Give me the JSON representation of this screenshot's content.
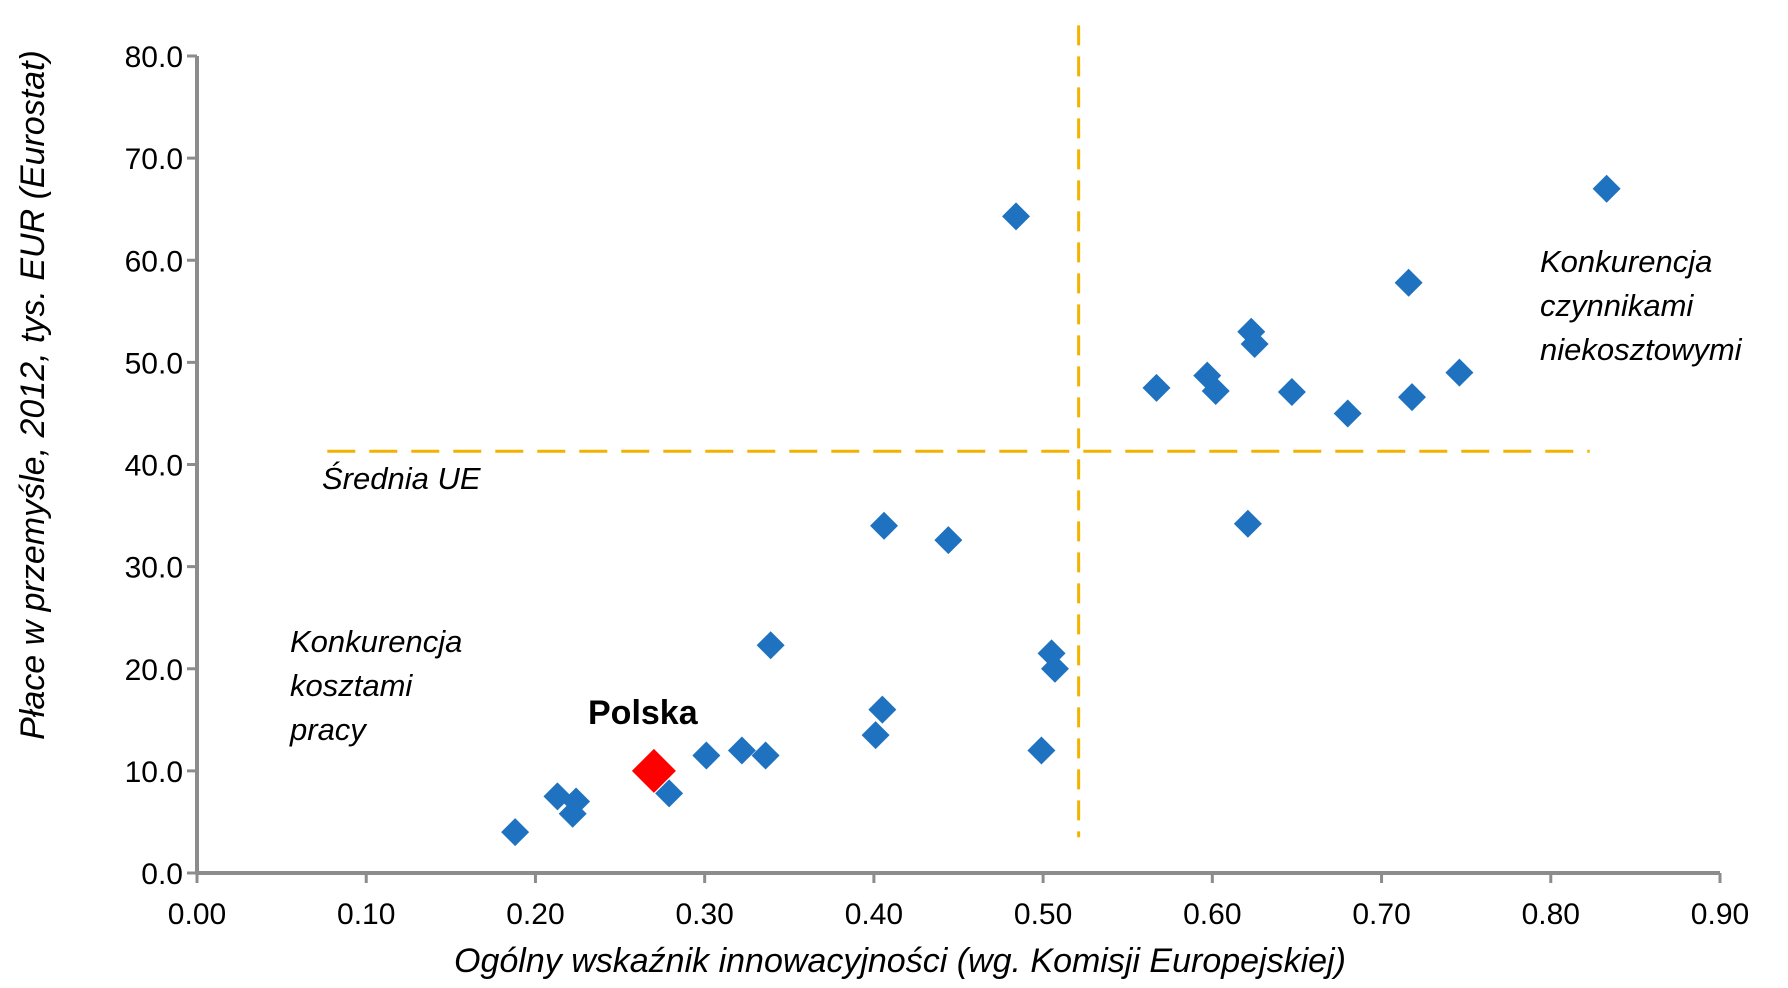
{
  "chart_data": {
    "type": "scatter",
    "xlabel": "Ogólny wskaźnik innowacyjności (wg. Komisji Europejskiej)",
    "ylabel": "Płace w przemyśle, 2012, tys. EUR (Eurostat)",
    "xlim": [
      0.0,
      0.9
    ],
    "ylim": [
      0.0,
      80.0
    ],
    "x_ticks": [
      "0.00",
      "0.10",
      "0.20",
      "0.30",
      "0.40",
      "0.50",
      "0.60",
      "0.70",
      "0.80",
      "0.90"
    ],
    "y_ticks": [
      "0.0",
      "10.0",
      "20.0",
      "30.0",
      "40.0",
      "50.0",
      "60.0",
      "70.0",
      "80.0"
    ],
    "grid": false,
    "series": [
      {
        "color": "#1F72C0",
        "points": [
          {
            "x": 0.188,
            "y": 4.0
          },
          {
            "x": 0.213,
            "y": 7.5
          },
          {
            "x": 0.222,
            "y": 5.8
          },
          {
            "x": 0.224,
            "y": 7.0
          },
          {
            "x": 0.279,
            "y": 7.8
          },
          {
            "x": 0.301,
            "y": 11.5
          },
          {
            "x": 0.322,
            "y": 12.0
          },
          {
            "x": 0.336,
            "y": 11.5
          },
          {
            "x": 0.339,
            "y": 22.3
          },
          {
            "x": 0.401,
            "y": 13.5
          },
          {
            "x": 0.405,
            "y": 16.0
          },
          {
            "x": 0.406,
            "y": 34.0
          },
          {
            "x": 0.444,
            "y": 32.6
          },
          {
            "x": 0.484,
            "y": 64.3
          },
          {
            "x": 0.499,
            "y": 12.0
          },
          {
            "x": 0.505,
            "y": 21.5
          },
          {
            "x": 0.507,
            "y": 20.0
          },
          {
            "x": 0.567,
            "y": 47.5
          },
          {
            "x": 0.597,
            "y": 48.7
          },
          {
            "x": 0.602,
            "y": 47.2
          },
          {
            "x": 0.621,
            "y": 34.2
          },
          {
            "x": 0.623,
            "y": 53.0
          },
          {
            "x": 0.625,
            "y": 51.8
          },
          {
            "x": 0.647,
            "y": 47.1
          },
          {
            "x": 0.68,
            "y": 45.0
          },
          {
            "x": 0.716,
            "y": 57.8
          },
          {
            "x": 0.718,
            "y": 46.6
          },
          {
            "x": 0.746,
            "y": 49.0
          },
          {
            "x": 0.833,
            "y": 67.0
          }
        ]
      },
      {
        "name": "Polska",
        "color": "#FF0000",
        "points": [
          {
            "x": 0.27,
            "y": 10.0
          }
        ]
      }
    ],
    "reference_lines": [
      {
        "orientation": "horizontal",
        "y": 41.3,
        "x_range": [
          0.077,
          0.823
        ],
        "color": "#F2B200",
        "style": "dashed"
      },
      {
        "orientation": "vertical",
        "x": 0.521,
        "y_range": [
          3.5,
          83.0
        ],
        "color": "#F2B200",
        "style": "dashed"
      }
    ],
    "annotations": [
      {
        "lines": [
          "Średnia UE"
        ],
        "color": "#F2B200",
        "style": "italic"
      },
      {
        "lines": [
          "Konkurencja",
          "czynnikami",
          "niekosztowymi"
        ],
        "color": "#E46C0A",
        "style": "italic"
      },
      {
        "lines": [
          "Konkurencja",
          "kosztami",
          "pracy"
        ],
        "color": "#E46C0A",
        "style": "italic"
      },
      {
        "lines": [
          "Polska"
        ],
        "color": "#FF0000",
        "style": "bold"
      }
    ]
  }
}
